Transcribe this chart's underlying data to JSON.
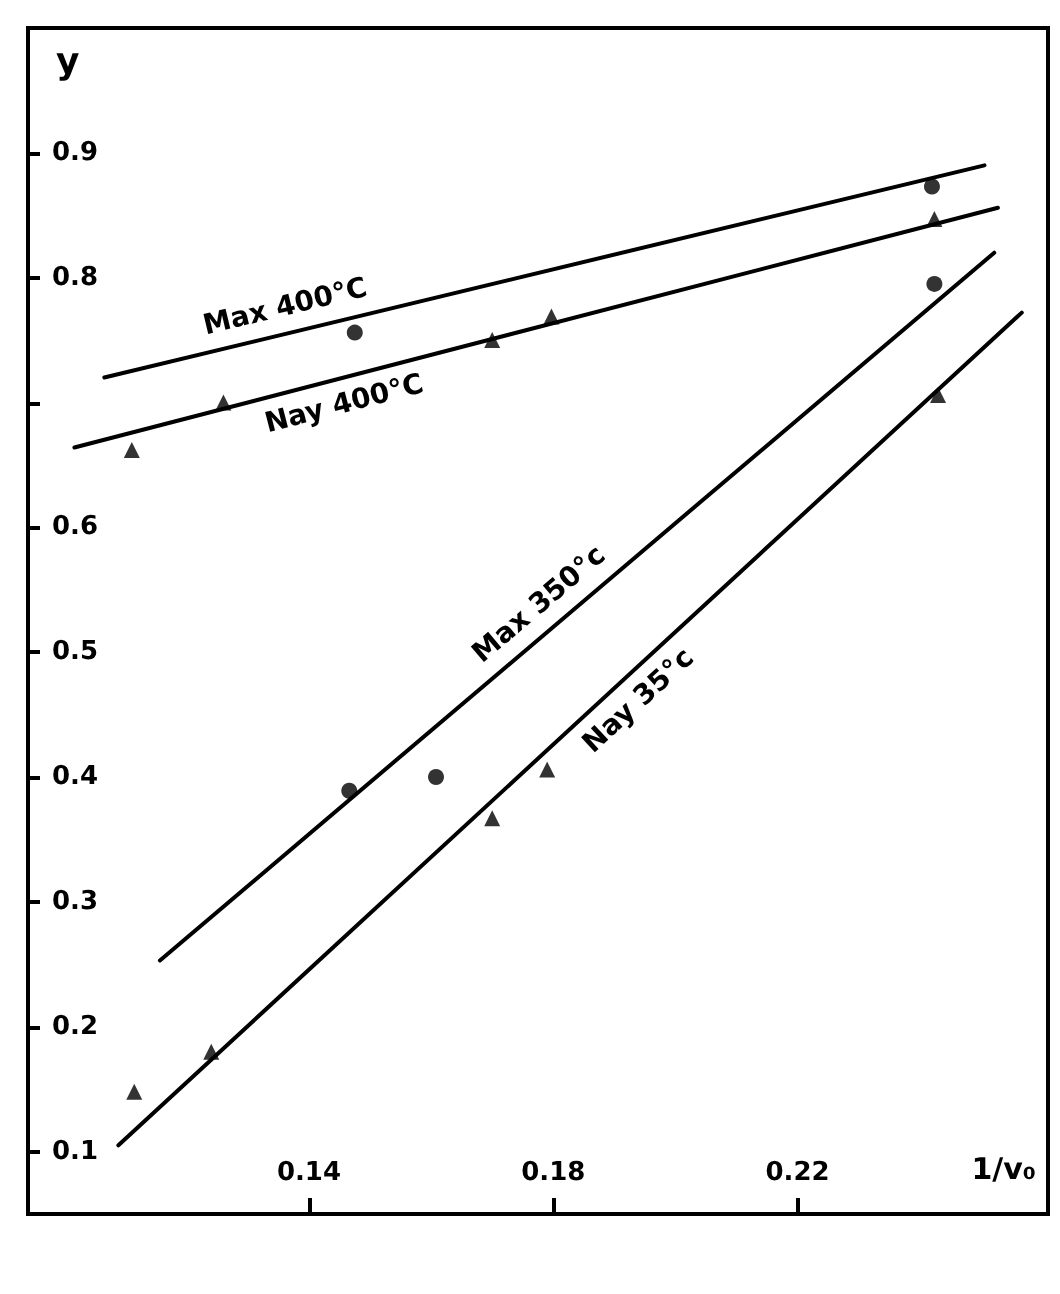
{
  "chart_data": {
    "type": "line",
    "xlabel": "1/v₀",
    "ylabel": "y",
    "xlim": [
      0.094,
      0.261
    ],
    "xticks": [
      0.14,
      0.18,
      0.22
    ],
    "ylim": [
      0.05,
      1.0
    ],
    "yticks": [
      0.1,
      0.2,
      0.3,
      0.4,
      0.5,
      0.6,
      {
        "value": 0.7,
        "label": null
      },
      0.8,
      0.9
    ],
    "grid": false,
    "legend": false,
    "line_style": "solid",
    "series": [
      {
        "name": "Max 400°C",
        "color": "#000000",
        "marker": "none",
        "x": [
          0.1065,
          0.2506
        ],
        "values": [
          0.72,
          0.89
        ]
      },
      {
        "name": "Nay 400°C",
        "color": "#000000",
        "marker": "none",
        "x": [
          0.1016,
          0.2528
        ],
        "values": [
          0.664,
          0.856
        ]
      },
      {
        "name": "Max 350°c",
        "color": "#000000",
        "marker": "none",
        "x": [
          0.1156,
          0.2522
        ],
        "values": [
          0.253,
          0.82
        ]
      },
      {
        "name": "Nay 35°c",
        "color": "#000000",
        "marker": "none",
        "x": [
          0.1088,
          0.2567
        ],
        "values": [
          0.105,
          0.772
        ]
      },
      {
        "type": "scatter",
        "color": "#000000",
        "marker": "circle",
        "x": [
          0.1475,
          0.242
        ],
        "values": [
          0.756,
          0.873
        ]
      },
      {
        "type": "scatter",
        "color": "#000000",
        "marker": "triangle",
        "x": [
          0.111,
          0.126,
          0.17,
          0.1797,
          0.2424
        ],
        "values": [
          0.662,
          0.7,
          0.75,
          0.769,
          0.847
        ]
      },
      {
        "type": "scatter",
        "color": "#000000",
        "marker": "circle",
        "x": [
          0.1466,
          0.1608,
          0.2424
        ],
        "values": [
          0.389,
          0.4,
          0.795
        ]
      },
      {
        "type": "scatter",
        "color": "#000000",
        "marker": "triangle",
        "x": [
          0.1114,
          0.124,
          0.17,
          0.179,
          0.243
        ],
        "values": [
          0.148,
          0.18,
          0.367,
          0.406,
          0.706
        ]
      }
    ]
  }
}
